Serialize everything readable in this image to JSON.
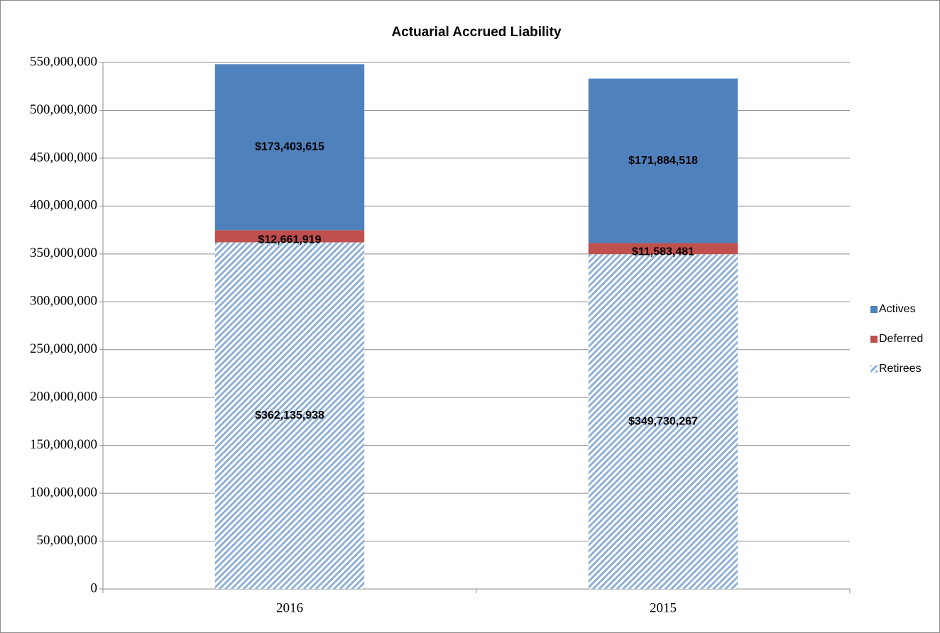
{
  "chart_data": {
    "type": "stacked_bar",
    "title": "Actuarial Accrued Liability",
    "categories": [
      "2016",
      "2015"
    ],
    "series": [
      {
        "name": "Retirees",
        "color": "#4f81bd",
        "hatch": true,
        "values": [
          362135938,
          349730267
        ],
        "value_labels": [
          "$362,135,938",
          "$349,730,267"
        ]
      },
      {
        "name": "Deferred",
        "color": "#c0504d",
        "values": [
          12661919,
          11583481
        ],
        "value_labels": [
          "$12,661,919",
          "$11,583,481"
        ]
      },
      {
        "name": "Actives",
        "color": "#4f81bd",
        "values": [
          173403615,
          171884518
        ],
        "value_labels": [
          "$173,403,615",
          "$171,884,518"
        ]
      }
    ],
    "ylim": [
      0,
      550000000
    ],
    "yticks": [
      0,
      {
        "value": 50000000,
        "label": "50,000,000"
      },
      {
        "value": 100000000,
        "label": "100,000,000"
      },
      {
        "value": 150000000,
        "label": "150,000,000"
      },
      {
        "value": 200000000,
        "label": "200,000,000"
      },
      {
        "value": 250000000,
        "label": "250,000,000"
      },
      {
        "value": 300000000,
        "label": "300,000,000"
      },
      {
        "value": 350000000,
        "label": "350,000,000"
      },
      {
        "value": 400000000,
        "label": "400,000,000"
      },
      {
        "value": 450000000,
        "label": "450,000,000"
      },
      {
        "value": 500000000,
        "label": "500,000,000"
      },
      {
        "value": 550000000,
        "label": "550,000,000"
      }
    ],
    "grid": true,
    "legend": "right"
  }
}
